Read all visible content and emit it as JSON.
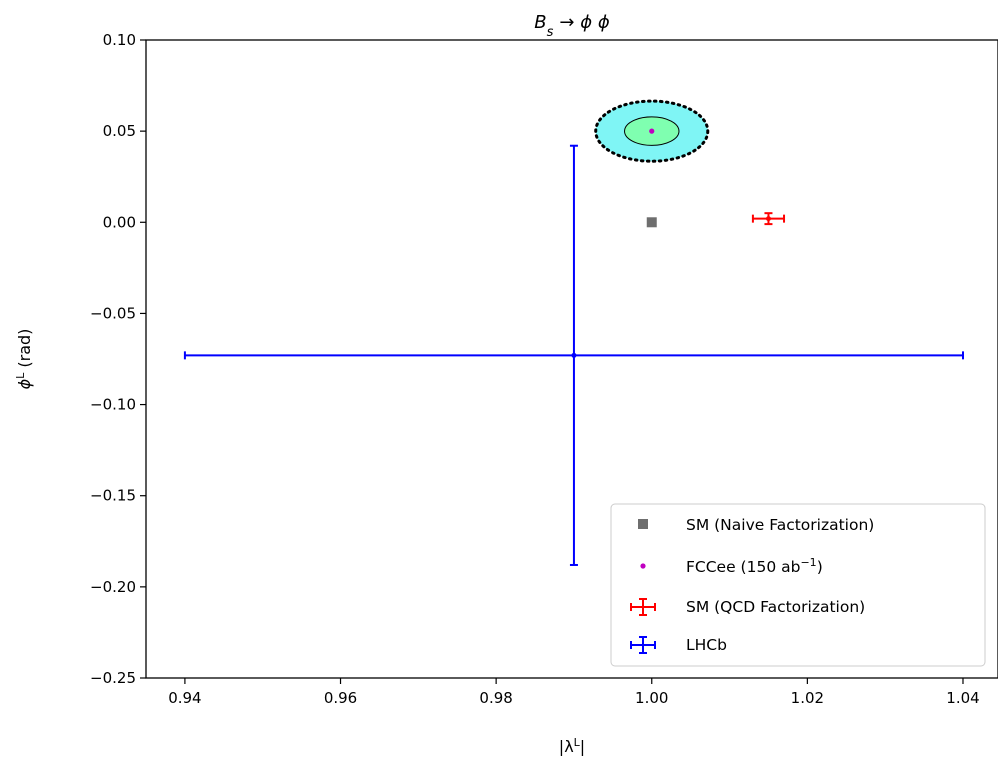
{
  "chart_data": {
    "type": "scatter",
    "title": "B_s → ϕ ϕ",
    "title_parts": {
      "base": "B",
      "sub": "s",
      "rest": "→ ϕ ϕ"
    },
    "xlabel": "|λ^L|",
    "xlabel_parts": {
      "pre": "|λ",
      "sup": "L",
      "post": "|"
    },
    "ylabel": "ϕ^L (rad)",
    "ylabel_parts": {
      "base": "ϕ",
      "sup": "L",
      "post": " (rad)"
    },
    "xlim": [
      0.935,
      1.0445
    ],
    "ylim": [
      -0.25,
      0.1
    ],
    "xticks": [
      0.94,
      0.96,
      0.98,
      1.0,
      1.02,
      1.04
    ],
    "xtick_labels": [
      "0.94",
      "0.96",
      "0.98",
      "1.00",
      "1.02",
      "1.04"
    ],
    "yticks": [
      0.1,
      0.05,
      0.0,
      -0.05,
      -0.1,
      -0.15,
      -0.2,
      -0.25
    ],
    "ytick_labels": [
      "0.10",
      "0.05",
      "0.00",
      "−0.05",
      "−0.10",
      "−0.15",
      "−0.20",
      "−0.25"
    ],
    "grid": false,
    "legend_position": "lower-right",
    "series": [
      {
        "name": "SM (Naive Factorization)",
        "kind": "square",
        "color": "#6e6e6e",
        "x": 1.0,
        "y": 0.0
      },
      {
        "name": "FCCee (150 ab",
        "name_sup": "−1",
        "name_post": ")",
        "kind": "ellipse",
        "color": "#c000c0",
        "x": 1.0,
        "y": 0.05,
        "inner_ellipse": {
          "rx": 0.0035,
          "ry": 0.0078,
          "fill": "#7fffb0"
        },
        "outer_ellipse": {
          "rx": 0.0072,
          "ry": 0.0165,
          "fill": "#7ff5f5"
        }
      },
      {
        "name": "SM (QCD Factorization)",
        "kind": "errorbar",
        "color": "#ff0000",
        "x": 1.015,
        "y": 0.002,
        "xerr": 0.002,
        "yerr": 0.003
      },
      {
        "name": "LHCb",
        "kind": "errorbar",
        "color": "#0000ff",
        "x": 0.99,
        "y": -0.073,
        "xerr": 0.05,
        "yerr": 0.115
      }
    ]
  }
}
